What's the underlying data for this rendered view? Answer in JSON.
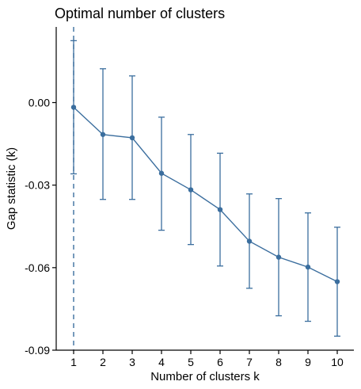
{
  "chart_data": {
    "type": "line",
    "title": "Optimal number of clusters",
    "xlabel": "Number of clusters k",
    "ylabel": "Gap statistic (k)",
    "x": [
      1,
      2,
      3,
      4,
      5,
      6,
      7,
      8,
      9,
      10
    ],
    "x_tick_labels": [
      "1",
      "2",
      "3",
      "4",
      "5",
      "6",
      "7",
      "8",
      "9",
      "10"
    ],
    "y_ticks": [
      0.0,
      -0.03,
      -0.06,
      -0.09
    ],
    "y_tick_labels": [
      "0.00",
      "-0.03",
      "-0.06",
      "-0.09"
    ],
    "ylim": [
      -0.09,
      0.0275
    ],
    "series": [
      {
        "values": [
          -0.0017,
          -0.0116,
          -0.0128,
          -0.0257,
          -0.0317,
          -0.0389,
          -0.0504,
          -0.0562,
          -0.0598,
          -0.0651
        ],
        "err_upper": [
          0.0225,
          0.0123,
          0.0097,
          -0.0053,
          -0.0116,
          -0.0184,
          -0.0332,
          -0.0349,
          -0.0401,
          -0.0453
        ],
        "err_lower": [
          -0.0259,
          -0.0352,
          -0.0352,
          -0.0464,
          -0.0516,
          -0.0594,
          -0.0675,
          -0.0775,
          -0.0795,
          -0.0849
        ],
        "color": "#3b6e9e"
      }
    ],
    "optimal_k": 1,
    "optimal_line_color": "#3b6e9e",
    "grid": false
  }
}
